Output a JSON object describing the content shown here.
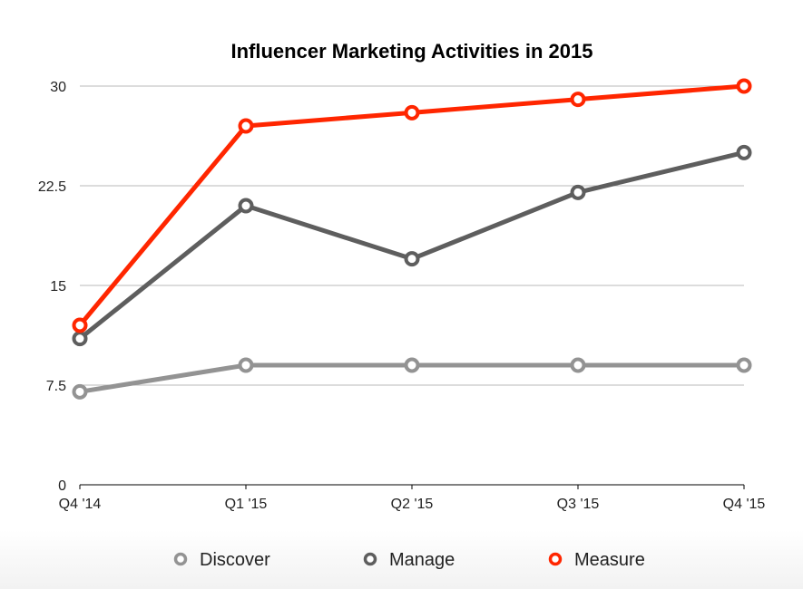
{
  "chart_data": {
    "type": "line",
    "title": "Influencer Marketing Activities in 2015",
    "xlabel": "",
    "ylabel": "",
    "categories": [
      "Q4 '14",
      "Q1 '15",
      "Q2 '15",
      "Q3 '15",
      "Q4 '15"
    ],
    "ylim": [
      0,
      30
    ],
    "yticks": [
      0,
      7.5,
      15,
      22.5,
      30
    ],
    "ytick_labels": [
      "0",
      "7.5",
      "15",
      "22.5",
      "30"
    ],
    "grid": true,
    "legend_position": "bottom-center",
    "series": [
      {
        "name": "Discover",
        "color": "#939393",
        "values": [
          7,
          9,
          9,
          9,
          9
        ]
      },
      {
        "name": "Manage",
        "color": "#5e5e5e",
        "values": [
          11,
          21,
          17,
          22,
          25
        ]
      },
      {
        "name": "Measure",
        "color": "#ff2600",
        "values": [
          12,
          27,
          28,
          29,
          30
        ]
      }
    ]
  }
}
